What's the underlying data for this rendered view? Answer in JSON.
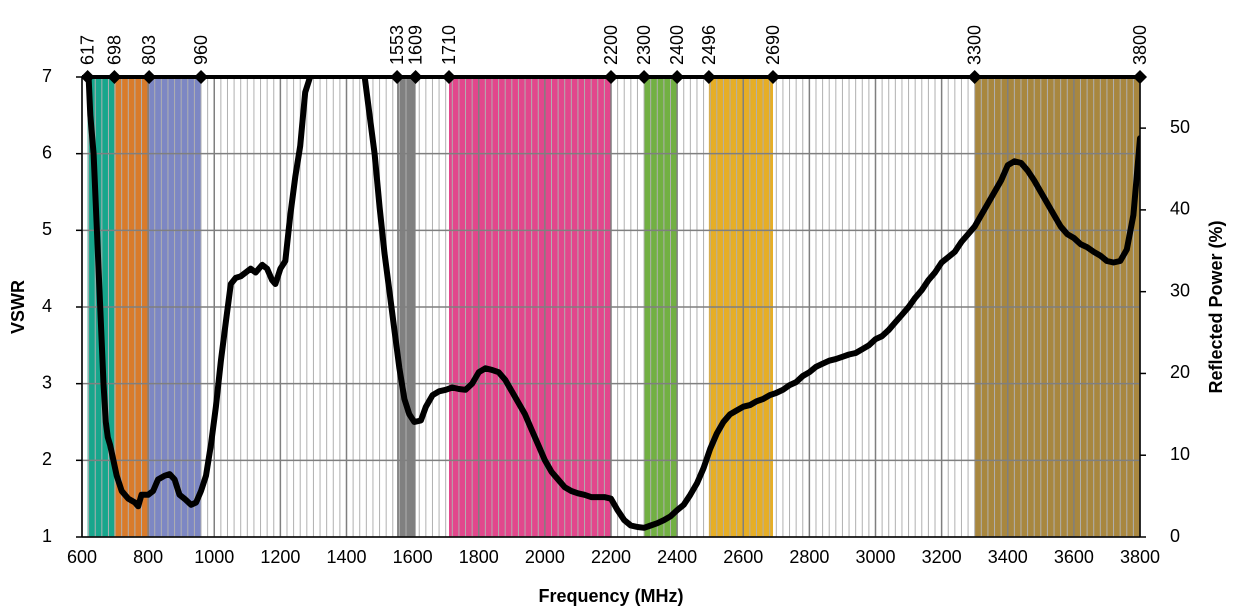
{
  "chart_data": {
    "type": "line",
    "xlabel": "Frequency (MHz)",
    "ylabel": "VSWR",
    "y2label": "Reflected Power (%)",
    "xlim": [
      600,
      3800
    ],
    "xticks": [
      600,
      800,
      1000,
      1200,
      1400,
      1600,
      1800,
      2000,
      2200,
      2400,
      2600,
      2800,
      3000,
      3200,
      3400,
      3600,
      3800
    ],
    "ylim": [
      1,
      7
    ],
    "yticks": [
      1,
      2,
      3,
      4,
      5,
      6,
      7
    ],
    "y2lim": [
      0,
      56.25
    ],
    "y2ticks": [
      0,
      10,
      20,
      30,
      40,
      50
    ],
    "grid": true,
    "bands": [
      {
        "from": 617,
        "to": 698,
        "color": "#17a68c"
      },
      {
        "from": 698,
        "to": 803,
        "color": "#d97b2b"
      },
      {
        "from": 803,
        "to": 960,
        "color": "#7d87c3"
      },
      {
        "from": 1553,
        "to": 1609,
        "color": "#808080"
      },
      {
        "from": 1710,
        "to": 2200,
        "color": "#e2478c"
      },
      {
        "from": 2300,
        "to": 2400,
        "color": "#72b043"
      },
      {
        "from": 2496,
        "to": 2690,
        "color": "#e6ae26"
      },
      {
        "from": 3300,
        "to": 3800,
        "color": "#a8873f"
      }
    ],
    "x": [
      620,
      625,
      635,
      645,
      655,
      665,
      672,
      678,
      685,
      695,
      705,
      720,
      740,
      760,
      770,
      780,
      800,
      815,
      830,
      850,
      865,
      880,
      895,
      910,
      930,
      945,
      960,
      975,
      990,
      1005,
      1020,
      1035,
      1050,
      1065,
      1080,
      1095,
      1110,
      1125,
      1145,
      1160,
      1175,
      1185,
      1200,
      1215,
      1230,
      1245,
      1260,
      1275,
      1290,
      1370,
      1455,
      1470,
      1485,
      1500,
      1515,
      1530,
      1545,
      1560,
      1575,
      1590,
      1605,
      1625,
      1640,
      1660,
      1680,
      1700,
      1720,
      1740,
      1760,
      1780,
      1800,
      1820,
      1840,
      1860,
      1880,
      1900,
      1920,
      1940,
      1960,
      1980,
      2000,
      2020,
      2040,
      2060,
      2080,
      2100,
      2120,
      2140,
      2160,
      2180,
      2200,
      2220,
      2240,
      2260,
      2280,
      2300,
      2320,
      2340,
      2360,
      2380,
      2400,
      2420,
      2440,
      2460,
      2480,
      2500,
      2520,
      2540,
      2560,
      2580,
      2600,
      2620,
      2640,
      2660,
      2680,
      2700,
      2720,
      2740,
      2760,
      2780,
      2800,
      2820,
      2840,
      2860,
      2880,
      2900,
      2920,
      2940,
      2960,
      2980,
      3000,
      3020,
      3040,
      3060,
      3080,
      3100,
      3120,
      3140,
      3160,
      3180,
      3200,
      3220,
      3240,
      3260,
      3280,
      3300,
      3320,
      3340,
      3360,
      3380,
      3400,
      3420,
      3440,
      3460,
      3480,
      3500,
      3520,
      3540,
      3560,
      3580,
      3600,
      3620,
      3640,
      3660,
      3680,
      3700,
      3720,
      3740,
      3760,
      3780,
      3790,
      3800
    ],
    "series": [
      {
        "name": "VSWR",
        "color": "#000000",
        "values": [
          7.0,
          6.5,
          6.0,
          5.0,
          4.0,
          3.0,
          2.5,
          2.3,
          2.2,
          2.0,
          1.8,
          1.6,
          1.5,
          1.45,
          1.4,
          1.55,
          1.55,
          1.6,
          1.75,
          1.8,
          1.82,
          1.75,
          1.55,
          1.5,
          1.42,
          1.45,
          1.6,
          1.8,
          2.2,
          2.7,
          3.3,
          3.8,
          4.3,
          4.38,
          4.4,
          4.45,
          4.5,
          4.45,
          4.55,
          4.5,
          4.35,
          4.3,
          4.5,
          4.6,
          5.2,
          5.7,
          6.1,
          6.8,
          7.0,
          null,
          7.0,
          6.5,
          6.0,
          5.3,
          4.7,
          4.2,
          3.7,
          3.2,
          2.8,
          2.6,
          2.5,
          2.52,
          2.7,
          2.85,
          2.9,
          2.92,
          2.95,
          2.93,
          2.92,
          3.0,
          3.15,
          3.2,
          3.18,
          3.15,
          3.05,
          2.9,
          2.75,
          2.6,
          2.4,
          2.2,
          2.0,
          1.85,
          1.75,
          1.65,
          1.6,
          1.57,
          1.55,
          1.52,
          1.52,
          1.52,
          1.5,
          1.35,
          1.22,
          1.15,
          1.13,
          1.12,
          1.15,
          1.18,
          1.22,
          1.27,
          1.35,
          1.42,
          1.55,
          1.7,
          1.9,
          2.15,
          2.35,
          2.5,
          2.6,
          2.65,
          2.7,
          2.72,
          2.77,
          2.8,
          2.85,
          2.88,
          2.92,
          2.98,
          3.02,
          3.1,
          3.15,
          3.22,
          3.26,
          3.3,
          3.32,
          3.35,
          3.38,
          3.4,
          3.45,
          3.5,
          3.58,
          3.62,
          3.7,
          3.8,
          3.9,
          4.0,
          4.12,
          4.22,
          4.35,
          4.45,
          4.58,
          4.65,
          4.72,
          4.85,
          4.95,
          5.05,
          5.2,
          5.35,
          5.5,
          5.65,
          5.85,
          5.9,
          5.88,
          5.78,
          5.65,
          5.5,
          5.35,
          5.2,
          5.05,
          4.95,
          4.9,
          4.82,
          4.78,
          4.72,
          4.67,
          4.6,
          4.58,
          4.6,
          4.75,
          5.2,
          5.7,
          6.2
        ]
      }
    ]
  }
}
